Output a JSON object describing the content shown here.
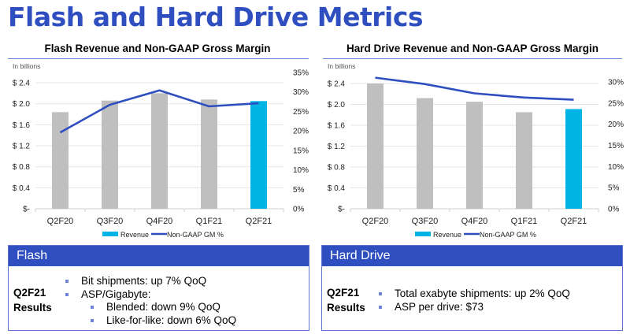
{
  "page_title": "Flash and Hard Drive Metrics",
  "chart_data": [
    {
      "type": "bar",
      "title": "Flash Revenue and Non-GAAP Gross Margin",
      "unit_note": "In billions",
      "categories": [
        "Q2F20",
        "Q3F20",
        "Q4F20",
        "Q1F21",
        "Q2F21"
      ],
      "series": [
        {
          "name": "Revenue",
          "type": "bar",
          "axis": "left",
          "values": [
            1.84,
            2.06,
            2.2,
            2.08,
            2.05
          ],
          "colors": [
            "#bfbfbf",
            "#bfbfbf",
            "#bfbfbf",
            "#bfbfbf",
            "#00b4e6"
          ]
        },
        {
          "name": "Non-GAAP GM %",
          "type": "line",
          "axis": "right",
          "values": [
            19.6,
            26.7,
            30.4,
            26.3,
            27.1
          ],
          "color": "#2f4ebf"
        }
      ],
      "left_axis": {
        "ylim": [
          0,
          2.4
        ],
        "ticks": [
          0,
          0.4,
          0.8,
          1.2,
          1.6,
          2.0,
          2.4
        ],
        "tick_labels": [
          "$-",
          "$ 0.4",
          "$ 0.8",
          "$ 1.2",
          "$ 1.6",
          "$ 2.0",
          "$ 2.4"
        ]
      },
      "right_axis": {
        "ylim": [
          0,
          35
        ],
        "ticks": [
          0,
          5,
          10,
          15,
          20,
          25,
          30,
          35
        ],
        "tick_labels": [
          "0%",
          "5%",
          "10%",
          "15%",
          "20%",
          "25%",
          "30%",
          "35%"
        ]
      },
      "grid": true,
      "legend": {
        "position": "bottom",
        "entries": [
          "Revenue",
          "Non-GAAP GM %"
        ]
      }
    },
    {
      "type": "bar",
      "title": "Hard Drive Revenue and Non-GAAP Gross Margin",
      "unit_note": "In billions",
      "categories": [
        "Q2F20",
        "Q3F20",
        "Q4F20",
        "Q1F21",
        "Q2F21"
      ],
      "series": [
        {
          "name": "Revenue",
          "type": "bar",
          "axis": "left",
          "values": [
            2.4,
            2.12,
            2.05,
            1.85,
            1.91
          ],
          "colors": [
            "#bfbfbf",
            "#bfbfbf",
            "#bfbfbf",
            "#bfbfbf",
            "#00b4e6"
          ]
        },
        {
          "name": "Non-GAAP GM %",
          "type": "line",
          "axis": "right",
          "values": [
            31.0,
            29.5,
            27.3,
            26.3,
            25.8
          ],
          "color": "#2f4ebf"
        }
      ],
      "left_axis": {
        "ylim": [
          0,
          2.4
        ],
        "ticks": [
          0,
          0.4,
          0.8,
          1.2,
          1.6,
          2.0,
          2.4
        ],
        "tick_labels": [
          "$-",
          "$ 0.4",
          "$ 0.8",
          "$ 1.2",
          "$ 1.6",
          "$ 2.0",
          "$ 2.4"
        ]
      },
      "right_axis": {
        "ylim": [
          0,
          30
        ],
        "ticks": [
          0,
          5,
          10,
          15,
          20,
          25,
          30
        ],
        "tick_labels": [
          "0%",
          "5%",
          "10%",
          "15%",
          "20%",
          "25%",
          "30%"
        ]
      },
      "grid": true,
      "legend": {
        "position": "bottom",
        "entries": [
          "Revenue",
          "Non-GAAP GM %"
        ]
      }
    }
  ],
  "boxes": [
    {
      "heading": "Flash",
      "label_line1": "Q2F21",
      "label_line2": "Results",
      "bullets": [
        {
          "level": 1,
          "text": "Bit shipments: up 7% QoQ"
        },
        {
          "level": 1,
          "text": "ASP/Gigabyte:"
        },
        {
          "level": 2,
          "text": "Blended: down 9% QoQ"
        },
        {
          "level": 2,
          "text": "Like-for-like: down 6% QoQ"
        }
      ]
    },
    {
      "heading": "Hard Drive",
      "label_line1": "Q2F21",
      "label_line2": "Results",
      "bullets": [
        {
          "level": 1,
          "text": "Total exabyte shipments: up 2% QoQ"
        },
        {
          "level": 1,
          "text": "ASP per drive: $73"
        }
      ]
    }
  ]
}
